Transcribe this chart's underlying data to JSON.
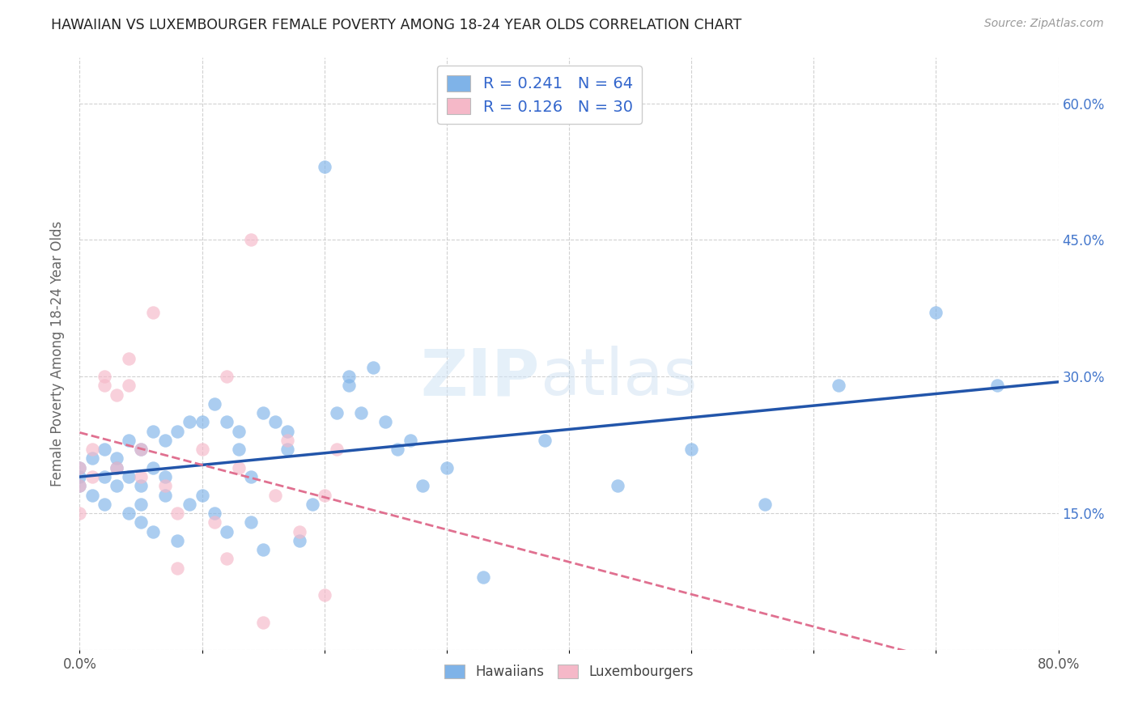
{
  "title": "HAWAIIAN VS LUXEMBOURGER FEMALE POVERTY AMONG 18-24 YEAR OLDS CORRELATION CHART",
  "source": "Source: ZipAtlas.com",
  "ylabel": "Female Poverty Among 18-24 Year Olds",
  "xlim": [
    0.0,
    0.8
  ],
  "ylim": [
    0.0,
    0.65
  ],
  "hawaiian_x": [
    0.0,
    0.0,
    0.0,
    0.01,
    0.01,
    0.02,
    0.02,
    0.02,
    0.03,
    0.03,
    0.03,
    0.04,
    0.04,
    0.04,
    0.05,
    0.05,
    0.05,
    0.05,
    0.06,
    0.06,
    0.06,
    0.07,
    0.07,
    0.07,
    0.08,
    0.08,
    0.09,
    0.09,
    0.1,
    0.1,
    0.11,
    0.11,
    0.12,
    0.12,
    0.13,
    0.13,
    0.14,
    0.14,
    0.15,
    0.15,
    0.16,
    0.17,
    0.17,
    0.18,
    0.19,
    0.2,
    0.21,
    0.22,
    0.22,
    0.23,
    0.24,
    0.25,
    0.26,
    0.27,
    0.28,
    0.3,
    0.33,
    0.38,
    0.44,
    0.5,
    0.56,
    0.62,
    0.7,
    0.75
  ],
  "hawaiian_y": [
    0.2,
    0.19,
    0.18,
    0.21,
    0.17,
    0.22,
    0.19,
    0.16,
    0.21,
    0.18,
    0.2,
    0.23,
    0.19,
    0.15,
    0.22,
    0.18,
    0.16,
    0.14,
    0.24,
    0.2,
    0.13,
    0.23,
    0.19,
    0.17,
    0.24,
    0.12,
    0.25,
    0.16,
    0.25,
    0.17,
    0.27,
    0.15,
    0.25,
    0.13,
    0.24,
    0.22,
    0.19,
    0.14,
    0.26,
    0.11,
    0.25,
    0.24,
    0.22,
    0.12,
    0.16,
    0.53,
    0.26,
    0.3,
    0.29,
    0.26,
    0.31,
    0.25,
    0.22,
    0.23,
    0.18,
    0.2,
    0.08,
    0.23,
    0.18,
    0.22,
    0.16,
    0.29,
    0.37,
    0.29
  ],
  "luxembourger_x": [
    0.0,
    0.0,
    0.0,
    0.01,
    0.01,
    0.02,
    0.02,
    0.03,
    0.03,
    0.04,
    0.04,
    0.05,
    0.05,
    0.06,
    0.07,
    0.08,
    0.08,
    0.1,
    0.11,
    0.12,
    0.12,
    0.13,
    0.14,
    0.15,
    0.16,
    0.17,
    0.18,
    0.2,
    0.2,
    0.21
  ],
  "luxembourger_y": [
    0.2,
    0.18,
    0.15,
    0.22,
    0.19,
    0.3,
    0.29,
    0.28,
    0.2,
    0.32,
    0.29,
    0.22,
    0.19,
    0.37,
    0.18,
    0.15,
    0.09,
    0.22,
    0.14,
    0.3,
    0.1,
    0.2,
    0.45,
    0.03,
    0.17,
    0.23,
    0.13,
    0.17,
    0.06,
    0.22
  ],
  "hawaiian_color": "#7fb3e8",
  "luxembourger_color": "#f5b8c8",
  "hawaiian_line_color": "#2255aa",
  "luxembourger_line_color": "#e07090",
  "R_hawaiian": 0.241,
  "N_hawaiian": 64,
  "R_luxembourger": 0.126,
  "N_luxembourger": 30,
  "watermark_zip": "ZIP",
  "watermark_atlas": "atlas",
  "background_color": "#ffffff",
  "grid_color": "#cccccc"
}
